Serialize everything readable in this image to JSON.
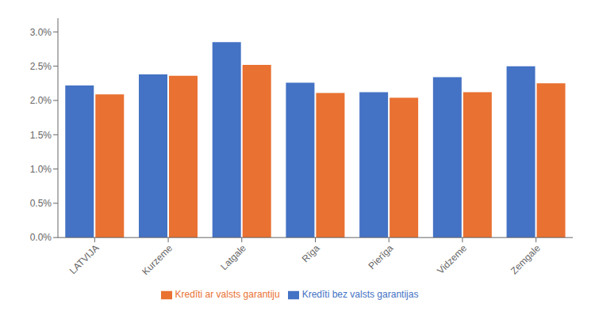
{
  "chart_data": {
    "type": "bar",
    "categories": [
      "LATVIJA",
      "Kurzeme",
      "Latgale",
      "Rīga",
      "Pierīga",
      "Vidzeme",
      "Zemgale"
    ],
    "series": [
      {
        "name": "Kredīti bez valsts garantijas",
        "color": "#4472C4",
        "values": [
          0.0222,
          0.0238,
          0.0285,
          0.0226,
          0.0212,
          0.0234,
          0.025
        ]
      },
      {
        "name": "Kredīti ar valsts garantiju",
        "color": "#E97132",
        "values": [
          0.0209,
          0.0236,
          0.0252,
          0.0211,
          0.0204,
          0.0212,
          0.0225
        ]
      }
    ],
    "ylim": [
      0.0,
      0.032
    ],
    "yticks": [
      {
        "value": 0.0,
        "label": "0.0%"
      },
      {
        "value": 0.005,
        "label": "0.5%"
      },
      {
        "value": 0.01,
        "label": "1.0%"
      },
      {
        "value": 0.015,
        "label": "1.5%"
      },
      {
        "value": 0.02,
        "label": "2.0%"
      },
      {
        "value": 0.025,
        "label": "2.5%"
      },
      {
        "value": 0.03,
        "label": "3.0%"
      }
    ],
    "grid": false,
    "legend": "bottom"
  }
}
